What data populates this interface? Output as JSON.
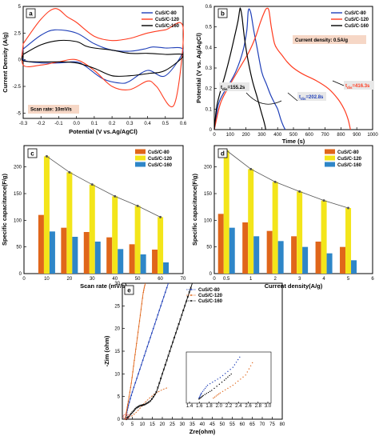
{
  "colors": {
    "s80": "#1f3fb8",
    "s120": "#ff3b1f",
    "s160": "#000000",
    "bar80": "#e0661a",
    "bar120": "#f3e51a",
    "bar160": "#2e86c8",
    "annbox": "#f6d7c6"
  },
  "chart_data": [
    {
      "panel": "a",
      "type": "line",
      "xlabel": "Potential (V vs.Ag/AgCl)",
      "ylabel": "Current Density (A/g)",
      "xlim": [
        -0.3,
        0.6
      ],
      "ylim": [
        -5.5,
        5
      ],
      "xticks": [
        "-0.3",
        "-0.2",
        "-0.1",
        "0.0",
        "0.1",
        "0.2",
        "0.3",
        "0.4",
        "0.5",
        "0.6"
      ],
      "yticks": [
        "-5",
        "-2.5",
        "0",
        "2.5",
        "5"
      ],
      "annotation": "Scan rate: 10mV/s",
      "series": [
        {
          "name": "CuS/C-80",
          "color": "s80",
          "x": [
            -0.3,
            -0.2,
            -0.12,
            0,
            0.1,
            0.2,
            0.3,
            0.38,
            0.43,
            0.5,
            0.6,
            0.5,
            0.4,
            0.3,
            0.25,
            0.15,
            0.05,
            0,
            -0.1,
            -0.2,
            -0.3
          ],
          "y": [
            1.0,
            2.3,
            2.8,
            2.5,
            1.5,
            0.9,
            0.8,
            1.0,
            1.2,
            1.1,
            0.9,
            -1.5,
            -1.0,
            -2.0,
            -2.2,
            -1.8,
            -0.6,
            -0.2,
            -0.3,
            -0.3,
            0.0
          ]
        },
        {
          "name": "CuS/C-120",
          "color": "s120",
          "x": [
            -0.3,
            -0.2,
            -0.12,
            -0.05,
            0,
            0.1,
            0.2,
            0.3,
            0.4,
            0.5,
            0.6,
            0.55,
            0.45,
            0.4,
            0.3,
            0.2,
            0.1,
            0,
            -0.1,
            -0.2,
            -0.3
          ],
          "y": [
            1.5,
            3.8,
            4.8,
            4.0,
            3.5,
            2.2,
            1.8,
            2.0,
            2.5,
            2.8,
            3.0,
            -4.2,
            -2.5,
            -2.0,
            -2.8,
            -2.5,
            -1.0,
            0.0,
            -0.2,
            -0.5,
            -0.5
          ]
        },
        {
          "name": "CuS/C-160",
          "color": "s160",
          "x": [
            -0.3,
            -0.2,
            -0.1,
            0,
            0.05,
            0.1,
            0.2,
            0.3,
            0.4,
            0.5,
            0.6,
            0.5,
            0.4,
            0.3,
            0.2,
            0.1,
            0,
            -0.1,
            -0.2,
            -0.3
          ],
          "y": [
            0.5,
            1.4,
            1.8,
            1.7,
            1.3,
            1.1,
            0.9,
            0.6,
            0.6,
            0.5,
            0.4,
            -1.0,
            -1.3,
            -1.5,
            -1.5,
            -0.8,
            -0.3,
            -0.2,
            -0.2,
            -0.1
          ]
        }
      ]
    },
    {
      "panel": "b",
      "type": "line",
      "xlabel": "Time (s)",
      "ylabel": "Potential (V vs. Ag/AgCl)",
      "xlim": [
        0,
        1000
      ],
      "ylim": [
        0,
        0.6
      ],
      "xticks": [
        "0",
        "100",
        "200",
        "300",
        "400",
        "500",
        "600",
        "700",
        "800",
        "900",
        "1000"
      ],
      "yticks": [
        "0",
        "0.1",
        "0.2",
        "0.3",
        "0.4",
        "0.5",
        "0.6"
      ],
      "annotation": "Current density: 0.5A/g",
      "labels": [
        {
          "text": "t",
          "sub": "dis",
          "rest": "=155.2s",
          "color": "s160"
        },
        {
          "text": "t",
          "sub": "dis",
          "rest": "=202.8s",
          "color": "s80"
        },
        {
          "text": "t",
          "sub": "dis",
          "rest": "=416.3s",
          "color": "s120"
        }
      ],
      "series": [
        {
          "name": "CuS/C-80",
          "color": "s80",
          "x": [
            0,
            25,
            60,
            100,
            140,
            180,
            205,
            215,
            230,
            250,
            270,
            300,
            330,
            355,
            380,
            400,
            420,
            435,
            448
          ],
          "y": [
            0.0,
            0.12,
            0.18,
            0.23,
            0.29,
            0.38,
            0.48,
            0.58,
            0.57,
            0.48,
            0.4,
            0.28,
            0.22,
            0.17,
            0.13,
            0.1,
            0.05,
            0.02,
            0.0
          ]
        },
        {
          "name": "CuS/C-120",
          "color": "s120",
          "x": [
            0,
            40,
            100,
            160,
            220,
            260,
            290,
            315,
            330,
            345,
            360,
            380,
            400,
            430,
            460,
            500,
            560,
            640,
            720,
            780,
            820,
            845,
            860
          ],
          "y": [
            0.0,
            0.13,
            0.22,
            0.3,
            0.38,
            0.45,
            0.52,
            0.57,
            0.59,
            0.58,
            0.5,
            0.42,
            0.39,
            0.36,
            0.33,
            0.3,
            0.27,
            0.24,
            0.2,
            0.15,
            0.1,
            0.05,
            0.0
          ]
        },
        {
          "name": "CuS/C-160",
          "color": "s160",
          "x": [
            0,
            15,
            40,
            70,
            100,
            130,
            150,
            160,
            165,
            175,
            190,
            210,
            240,
            270,
            295,
            310,
            320,
            325
          ],
          "y": [
            0.0,
            0.11,
            0.19,
            0.27,
            0.36,
            0.46,
            0.53,
            0.58,
            0.59,
            0.55,
            0.45,
            0.35,
            0.24,
            0.16,
            0.09,
            0.05,
            0.02,
            0.0
          ]
        }
      ]
    },
    {
      "panel": "c",
      "type": "bar",
      "xlabel": "Scan rate (mV/s)",
      "ylabel": "Specific capacitance(F/g)",
      "xlim": [
        0,
        70
      ],
      "ylim": [
        0,
        240
      ],
      "xticks": [
        "0",
        "10",
        "20",
        "30",
        "40",
        "50",
        "60",
        "70"
      ],
      "yticks": [
        "0",
        "50",
        "100",
        "150",
        "200"
      ],
      "categories": [
        10,
        20,
        30,
        40,
        50,
        60
      ],
      "series": [
        {
          "name": "CuS/C-80",
          "color": "bar80",
          "values": [
            110,
            86,
            78,
            68,
            55,
            45
          ]
        },
        {
          "name": "CuS/C-120",
          "color": "bar120",
          "values": [
            220,
            190,
            167,
            145,
            127,
            106
          ]
        },
        {
          "name": "CuS/C-160",
          "color": "bar160",
          "values": [
            79,
            69,
            60,
            46,
            36,
            21
          ]
        }
      ]
    },
    {
      "panel": "d",
      "type": "bar",
      "xlabel": "Current density(A/g)",
      "ylabel": "Specific capacitance(F/g)",
      "xlim": [
        0,
        6
      ],
      "ylim": [
        0,
        240
      ],
      "xticks": [
        "0",
        "0.5",
        "1",
        "2",
        "3",
        "4",
        "5",
        "6"
      ],
      "yticks": [
        "0",
        "50",
        "100",
        "150",
        "200"
      ],
      "categories": [
        "0.5",
        "1",
        "2",
        "3",
        "4",
        "5"
      ],
      "series": [
        {
          "name": "CuS/C-80",
          "color": "bar80",
          "values": [
            112,
            96,
            80,
            70,
            60,
            50
          ]
        },
        {
          "name": "CuS/C-120",
          "color": "bar120",
          "values": [
            231,
            196,
            172,
            154,
            137,
            123
          ]
        },
        {
          "name": "CuS/C-160",
          "color": "bar160",
          "values": [
            86,
            70,
            61,
            50,
            38,
            25
          ]
        }
      ]
    },
    {
      "panel": "e",
      "type": "scatter",
      "xlabel": "Zre(ohm)",
      "ylabel": "-Zim (ohm)",
      "xlim": [
        0,
        80
      ],
      "ylim": [
        0,
        30
      ],
      "xticks": [
        "0",
        "5",
        "10",
        "15",
        "20",
        "25",
        "30",
        "35",
        "40",
        "45",
        "50",
        "55",
        "60",
        "65",
        "70",
        "75",
        "80"
      ],
      "yticks": [
        "0",
        "5",
        "10",
        "15",
        "20",
        "25",
        "30"
      ],
      "inset_xticks": [
        "1.4",
        "1.6",
        "1.8",
        "2.0",
        "2.2",
        "2.4",
        "2.6",
        "2.8",
        "3.0"
      ],
      "series": [
        {
          "name": "CuS/C-80",
          "color": "s80",
          "marker": "circle"
        },
        {
          "name": "CuS/C-120",
          "color": "bar80",
          "marker": "triangle"
        },
        {
          "name": "CuS/C-160",
          "color": "s160",
          "marker": "cross"
        }
      ]
    }
  ]
}
